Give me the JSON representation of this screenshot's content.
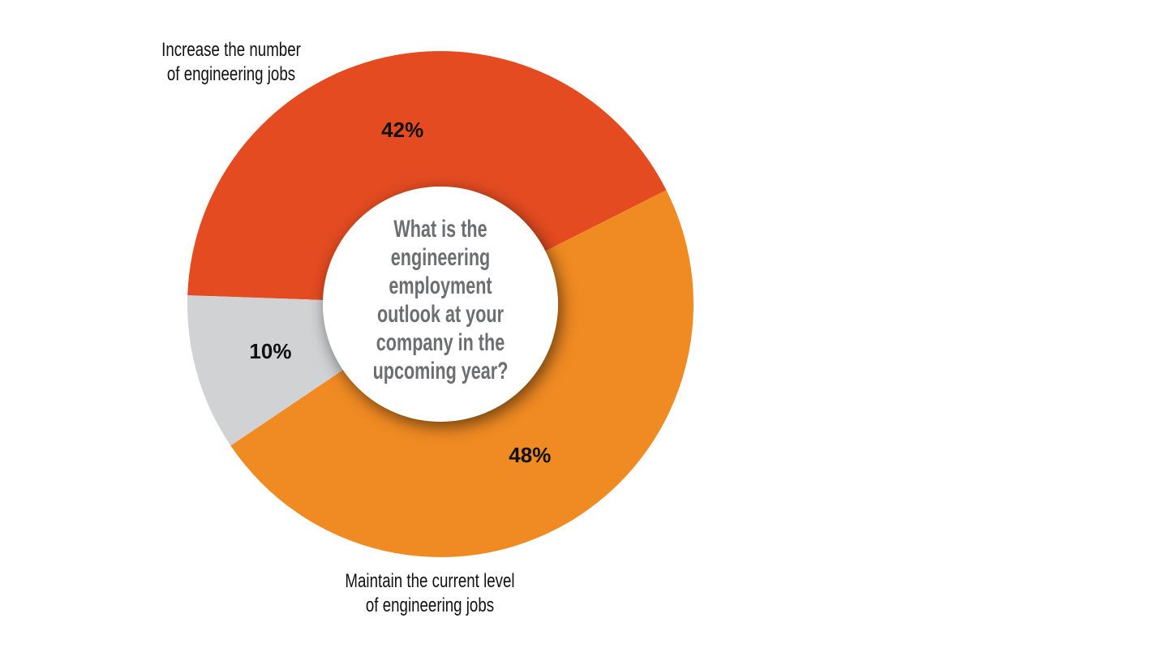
{
  "chart_data": {
    "type": "donut",
    "title": "What is the\nengineering\nemployment\noutlook at your\ncompany in the\nupcoming year?",
    "categories": [
      "Increase the number\nof engineering jobs",
      "Maintain the current level\nof engineering jobs",
      null
    ],
    "values": [
      42,
      48,
      10
    ],
    "value_labels": [
      "42%",
      "48%",
      "10%"
    ],
    "colors": [
      "#e44b20",
      "#f08a22",
      "#d1d2d4"
    ]
  }
}
